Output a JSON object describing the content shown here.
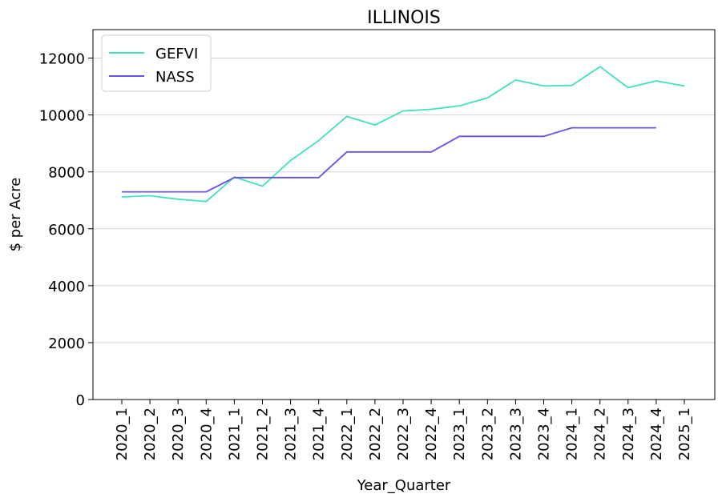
{
  "chart_data": {
    "type": "line",
    "title": "ILLINOIS",
    "xlabel": "Year_Quarter",
    "ylabel": "$ per Acre",
    "categories": [
      "2020_1",
      "2020_2",
      "2020_3",
      "2020_4",
      "2021_1",
      "2021_2",
      "2021_3",
      "2021_4",
      "2022_1",
      "2022_2",
      "2022_3",
      "2022_4",
      "2023_1",
      "2023_2",
      "2023_3",
      "2023_4",
      "2024_1",
      "2024_2",
      "2024_3",
      "2024_4",
      "2025_1"
    ],
    "ylim": [
      0,
      13000
    ],
    "yticks": [
      0,
      2000,
      4000,
      6000,
      8000,
      10000,
      12000
    ],
    "grid": "horizontal",
    "legend_position": "top-left",
    "series": [
      {
        "name": "GEFVI",
        "color": "#40e0c0",
        "values": [
          7120,
          7160,
          7040,
          6960,
          7820,
          7500,
          8400,
          9100,
          9950,
          9650,
          10140,
          10200,
          10320,
          10600,
          11230,
          11020,
          11040,
          11700,
          10960,
          11200,
          11020
        ]
      },
      {
        "name": "NASS",
        "color": "#6a4fe8",
        "values": [
          7300,
          7300,
          7300,
          7300,
          7800,
          7800,
          7800,
          7800,
          8700,
          8700,
          8700,
          8700,
          9250,
          9250,
          9250,
          9250,
          9550,
          9550,
          9550,
          9550,
          null
        ]
      }
    ]
  }
}
